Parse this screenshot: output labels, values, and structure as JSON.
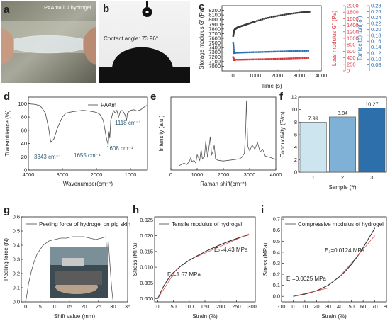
{
  "panels": {
    "a": {
      "label": "a",
      "caption": "PAAm/LiCl hydrogel"
    },
    "b": {
      "label": "b",
      "caption": "Contact angle: 73.96°"
    },
    "c": {
      "label": "c",
      "xlabel": "Time (s)",
      "ylabel_left": "Storage modulus G' (Pa)",
      "ylabel_mid": "Loss modulus G'' (Pa)",
      "ylabel_right": "Tan(delta) tan( δ )"
    },
    "d": {
      "label": "d",
      "xlabel": "Wavenumber(cm⁻¹)",
      "ylabel": "Transmittance (%)",
      "legend": "PAAm",
      "ann1": "3343 cm⁻¹",
      "ann2": "1655 cm⁻¹",
      "ann3": "1608 cm⁻¹",
      "ann4": "1118 cm⁻¹"
    },
    "e": {
      "label": "e",
      "xlabel": "Raman shift(cm⁻¹)",
      "ylabel": "Intensity (a.u.)"
    },
    "f": {
      "label": "f",
      "xlabel": "Sample (#)",
      "ylabel": "Conductivity (S/m)"
    },
    "g": {
      "label": "g",
      "xlabel": "Shift value (mm)",
      "ylabel": "Peeling force (N)",
      "legend": "Peeling force of hydrogel on pig skin"
    },
    "h": {
      "label": "h",
      "xlabel": "Strain (%)",
      "ylabel": "Stress (MPa)",
      "legend": "Tensile modulus of hydrogel",
      "ann1": "E₁=1.57 MPa",
      "ann2": "E₂=4.43 MPa"
    },
    "i": {
      "label": "i",
      "xlabel": "Strain (%)",
      "ylabel": "Stress (MPa)",
      "legend": "Compressive modulus of hydrogel",
      "ann1": "E₁=0.0025 MPa",
      "ann2": "E₂=0.0124 MPa"
    }
  },
  "chart_data": [
    {
      "panel": "c",
      "type": "scatter",
      "x_range": [
        -500,
        4000
      ],
      "x_ticks": [
        0,
        1000,
        2000,
        3000,
        4000
      ],
      "y_left_range": [
        6900,
        8300
      ],
      "y_left_ticks": [
        7000,
        7100,
        7200,
        7300,
        7400,
        7500,
        7600,
        7700,
        7800,
        7900,
        8000,
        8100,
        8200
      ],
      "y_mid_range": [
        0,
        2000
      ],
      "y_mid_ticks": [
        0,
        200,
        400,
        600,
        800,
        1000,
        1200,
        1400,
        1600,
        1800,
        2000
      ],
      "y_right_range": [
        0.06,
        0.28
      ],
      "y_right_ticks": [
        0.08,
        0.1,
        0.12,
        0.14,
        0.16,
        0.18,
        0.2,
        0.22,
        0.24,
        0.26,
        0.28
      ],
      "y_right_tick_labels": [
        "0.08",
        "0.10",
        "0.12",
        "0.14",
        "0.16",
        "0.18",
        "0.20",
        "0.22",
        "0.24",
        "0.26",
        "0.28"
      ],
      "series": [
        {
          "axis": "left",
          "color": "#3a3a3a",
          "x": [
            10,
            50,
            100,
            200,
            300,
            500,
            750,
            1000,
            1500,
            2000,
            2500,
            3000,
            3300,
            3500
          ],
          "y": [
            7650,
            7760,
            7800,
            7830,
            7850,
            7880,
            7920,
            7960,
            8030,
            8080,
            8120,
            8150,
            8165,
            8170
          ]
        },
        {
          "axis": "mid",
          "color": "#d9363e",
          "x": [
            10,
            50,
            100,
            500,
            1000,
            1500,
            2000,
            2500,
            3000,
            3500
          ],
          "y": [
            420,
            330,
            340,
            345,
            352,
            360,
            368,
            378,
            390,
            400
          ]
        },
        {
          "axis": "right",
          "color": "#2d6fb5",
          "x": [
            10,
            50,
            100,
            500,
            1000,
            1500,
            2000,
            2500,
            3000,
            3500
          ],
          "y": [
            0.155,
            0.12,
            0.121,
            0.122,
            0.123,
            0.124,
            0.125,
            0.126,
            0.127,
            0.128
          ]
        }
      ]
    },
    {
      "panel": "d",
      "type": "line",
      "x_range": [
        4000,
        500
      ],
      "x_ticks": [
        4000,
        3000,
        2000,
        1000
      ],
      "y_range": [
        0,
        110
      ],
      "y_ticks": [
        0,
        20,
        40,
        60,
        80,
        100
      ],
      "series": [
        {
          "name": "PAAm",
          "x": [
            4000,
            3800,
            3650,
            3500,
            3400,
            3343,
            3250,
            3150,
            3000,
            2900,
            2700,
            2400,
            2200,
            2000,
            1900,
            1800,
            1700,
            1655,
            1630,
            1608,
            1580,
            1500,
            1450,
            1400,
            1350,
            1300,
            1250,
            1200,
            1150,
            1118,
            1090,
            1000,
            900,
            800,
            700,
            600,
            500
          ],
          "y": [
            100,
            99,
            97,
            86,
            62,
            42,
            47,
            63,
            80,
            86,
            88,
            90,
            89,
            87,
            84,
            75,
            46,
            38,
            58,
            48,
            75,
            90,
            86,
            90,
            80,
            88,
            90,
            87,
            82,
            74,
            86,
            90,
            91,
            89,
            91,
            95,
            98
          ]
        }
      ]
    },
    {
      "panel": "e",
      "type": "line",
      "x_range": [
        0,
        4000
      ],
      "x_ticks": [
        0,
        1000,
        2000,
        3000,
        4000
      ],
      "series": [
        {
          "x": [
            300,
            500,
            600,
            700,
            760,
            800,
            880,
            950,
            1000,
            1100,
            1150,
            1200,
            1280,
            1330,
            1400,
            1450,
            1500,
            1550,
            1600,
            1650,
            1700,
            1800,
            2000,
            2200,
            2400,
            2600,
            2700,
            2800,
            2850,
            2880,
            2930,
            3000,
            3100,
            3200,
            3300,
            3400,
            3500,
            3600,
            3800,
            4000
          ],
          "y": [
            0.06,
            0.1,
            0.08,
            0.12,
            0.18,
            0.12,
            0.14,
            0.1,
            0.22,
            0.14,
            0.3,
            0.16,
            0.2,
            0.42,
            0.18,
            0.32,
            0.48,
            0.22,
            0.26,
            0.36,
            0.16,
            0.14,
            0.13,
            0.14,
            0.15,
            0.16,
            0.18,
            0.24,
            0.55,
            1.0,
            0.34,
            0.28,
            0.36,
            0.3,
            0.4,
            0.26,
            0.3,
            0.2,
            0.18,
            0.15
          ]
        }
      ]
    },
    {
      "panel": "f",
      "type": "bar",
      "categories": [
        "1",
        "2",
        "3"
      ],
      "values": [
        7.99,
        8.84,
        10.27
      ],
      "value_labels": [
        "7.99",
        "8.84",
        "10.27"
      ],
      "colors": [
        "#cde5ef",
        "#7fb0d6",
        "#2c6fab"
      ],
      "y_range": [
        0,
        12
      ],
      "y_ticks": [
        0,
        2,
        4,
        6,
        8,
        10,
        12
      ]
    },
    {
      "panel": "g",
      "type": "line",
      "x_range": [
        -1.5,
        35
      ],
      "x_ticks": [
        0,
        5,
        10,
        15,
        20,
        25,
        30,
        35
      ],
      "y_range": [
        0,
        0.6
      ],
      "y_ticks": [
        0.0,
        0.1,
        0.2,
        0.3,
        0.4,
        0.5,
        0.6
      ],
      "y_tick_labels": [
        "0.0",
        "0.1",
        "0.2",
        "0.3",
        "0.4",
        "0.5",
        "0.6"
      ],
      "series": [
        {
          "x": [
            0,
            0.5,
            1,
            2,
            3,
            4,
            5,
            6,
            8,
            10,
            12,
            14,
            16,
            18,
            20,
            22,
            24,
            26,
            27.5,
            28,
            28.3,
            28.8,
            29.5,
            30
          ],
          "y": [
            0.0,
            0.06,
            0.13,
            0.22,
            0.29,
            0.34,
            0.37,
            0.4,
            0.43,
            0.44,
            0.45,
            0.45,
            0.46,
            0.46,
            0.46,
            0.45,
            0.44,
            0.45,
            0.46,
            0.3,
            0.44,
            0.3,
            0.1,
            0.0
          ]
        }
      ]
    },
    {
      "panel": "h",
      "type": "line",
      "x_range": [
        -10,
        310
      ],
      "x_ticks": [
        0,
        50,
        100,
        150,
        200,
        250,
        300
      ],
      "y_range": [
        -0.001,
        0.026
      ],
      "y_ticks": [
        0.0,
        0.005,
        0.01,
        0.015,
        0.02,
        0.025
      ],
      "y_tick_labels": [
        "0.000",
        "0.005",
        "0.010",
        "0.015",
        "0.020",
        "0.025"
      ],
      "series": [
        {
          "x": [
            0,
            10,
            20,
            30,
            40,
            50,
            75,
            100,
            125,
            150,
            175,
            200,
            225,
            250,
            275,
            290
          ],
          "y": [
            0.0,
            0.0022,
            0.0042,
            0.0058,
            0.0072,
            0.0083,
            0.0105,
            0.0122,
            0.0136,
            0.0149,
            0.0161,
            0.0172,
            0.0182,
            0.0191,
            0.0199,
            0.0203
          ]
        }
      ]
    },
    {
      "panel": "i",
      "type": "line",
      "x_range": [
        -10,
        80
      ],
      "x_ticks": [
        -10,
        0,
        10,
        20,
        30,
        40,
        50,
        60,
        70,
        80
      ],
      "y_range": [
        -0.05,
        0.72
      ],
      "y_ticks": [
        0.0,
        0.1,
        0.2,
        0.3,
        0.4,
        0.5,
        0.6,
        0.7
      ],
      "y_tick_labels": [
        "0.0",
        "0.1",
        "0.2",
        "0.3",
        "0.4",
        "0.5",
        "0.6",
        "0.7"
      ],
      "series": [
        {
          "x": [
            0,
            5,
            10,
            15,
            20,
            25,
            30,
            35,
            40,
            45,
            50,
            55,
            60,
            65,
            68,
            70
          ],
          "y": [
            0.0,
            0.01,
            0.02,
            0.035,
            0.05,
            0.075,
            0.1,
            0.14,
            0.18,
            0.23,
            0.29,
            0.36,
            0.44,
            0.53,
            0.58,
            0.62
          ]
        }
      ]
    }
  ]
}
